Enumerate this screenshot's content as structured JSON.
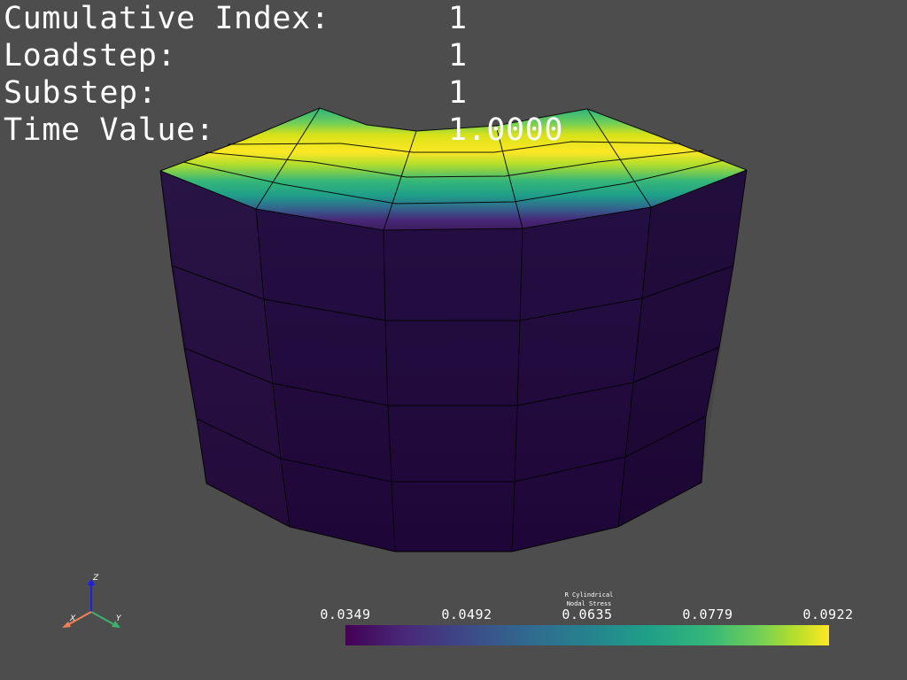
{
  "info": {
    "rows": [
      {
        "label": "Cumulative Index:",
        "value": "1"
      },
      {
        "label": "Loadstep:",
        "value": "1"
      },
      {
        "label": "Substep:",
        "value": "1"
      },
      {
        "label": "Time Value:",
        "value": "1.0000"
      }
    ]
  },
  "colorbar": {
    "title_line1": "R Cylindrical",
    "title_line2": "Nodal Stress",
    "ticks": [
      "0.0349",
      "0.0492",
      "0.0635",
      "0.0779",
      "0.0922"
    ],
    "colormap": "viridis"
  },
  "axes": {
    "x_label": "X",
    "y_label": "Y",
    "z_label": "Z",
    "x_color": "#f58058",
    "y_color": "#3cb46e",
    "z_color": "#1e1ee6"
  },
  "colors": {
    "background": "#4d4d4d",
    "mesh_side": "#220a3f",
    "mesh_edge": "#000000"
  }
}
